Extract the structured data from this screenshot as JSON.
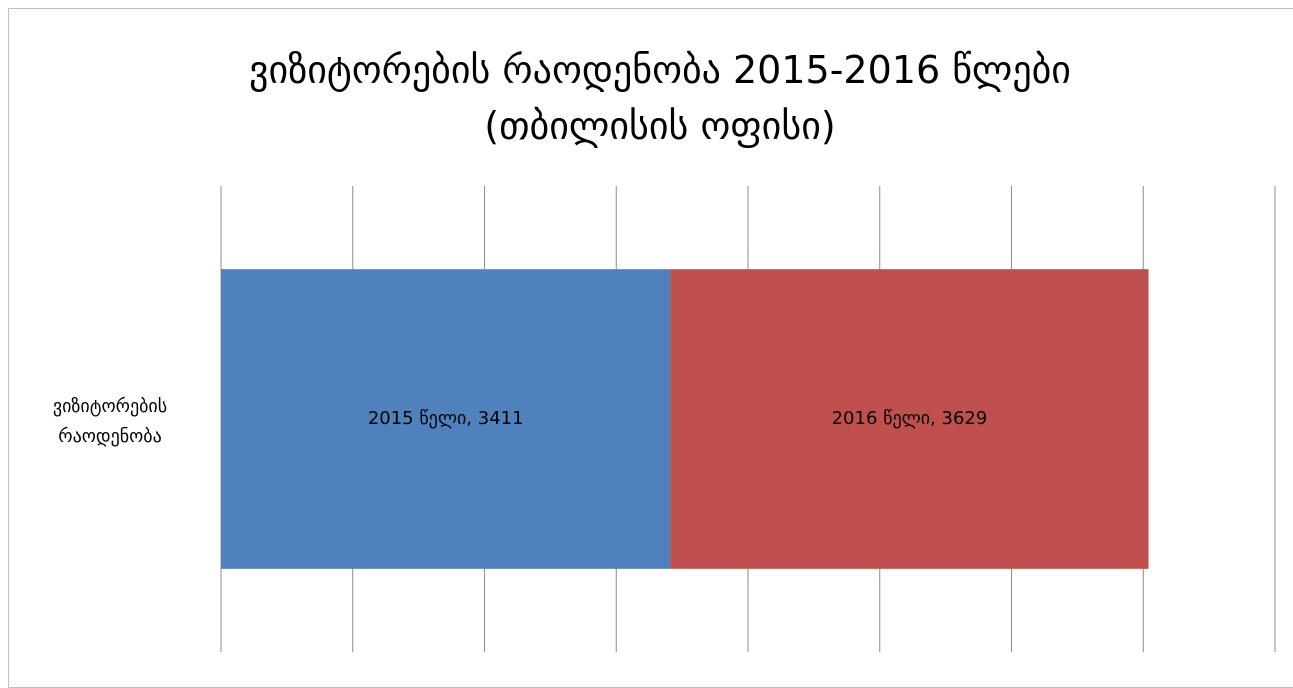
{
  "chart_data": {
    "type": "stacked-barh",
    "title": "ვიზიტორების რაოდენობა 2015-2016 წლები (თბილისის ოფისი)",
    "categories": [
      "ვიზიტორების რაოდენობა"
    ],
    "series": [
      {
        "name": "2015 წელი",
        "color": "#4f81bd",
        "values": [
          3411
        ],
        "value_labels": [
          "2015 წელი, 3411"
        ]
      },
      {
        "name": "2016 წელი",
        "color": "#c0504d",
        "values": [
          3629
        ],
        "value_labels": [
          "2016 წელი, 3629"
        ]
      }
    ],
    "xlim": [
      0,
      8000
    ],
    "xticks": [
      0,
      1000,
      2000,
      3000,
      4000,
      5000,
      6000,
      7000,
      8000
    ],
    "grid": true
  }
}
